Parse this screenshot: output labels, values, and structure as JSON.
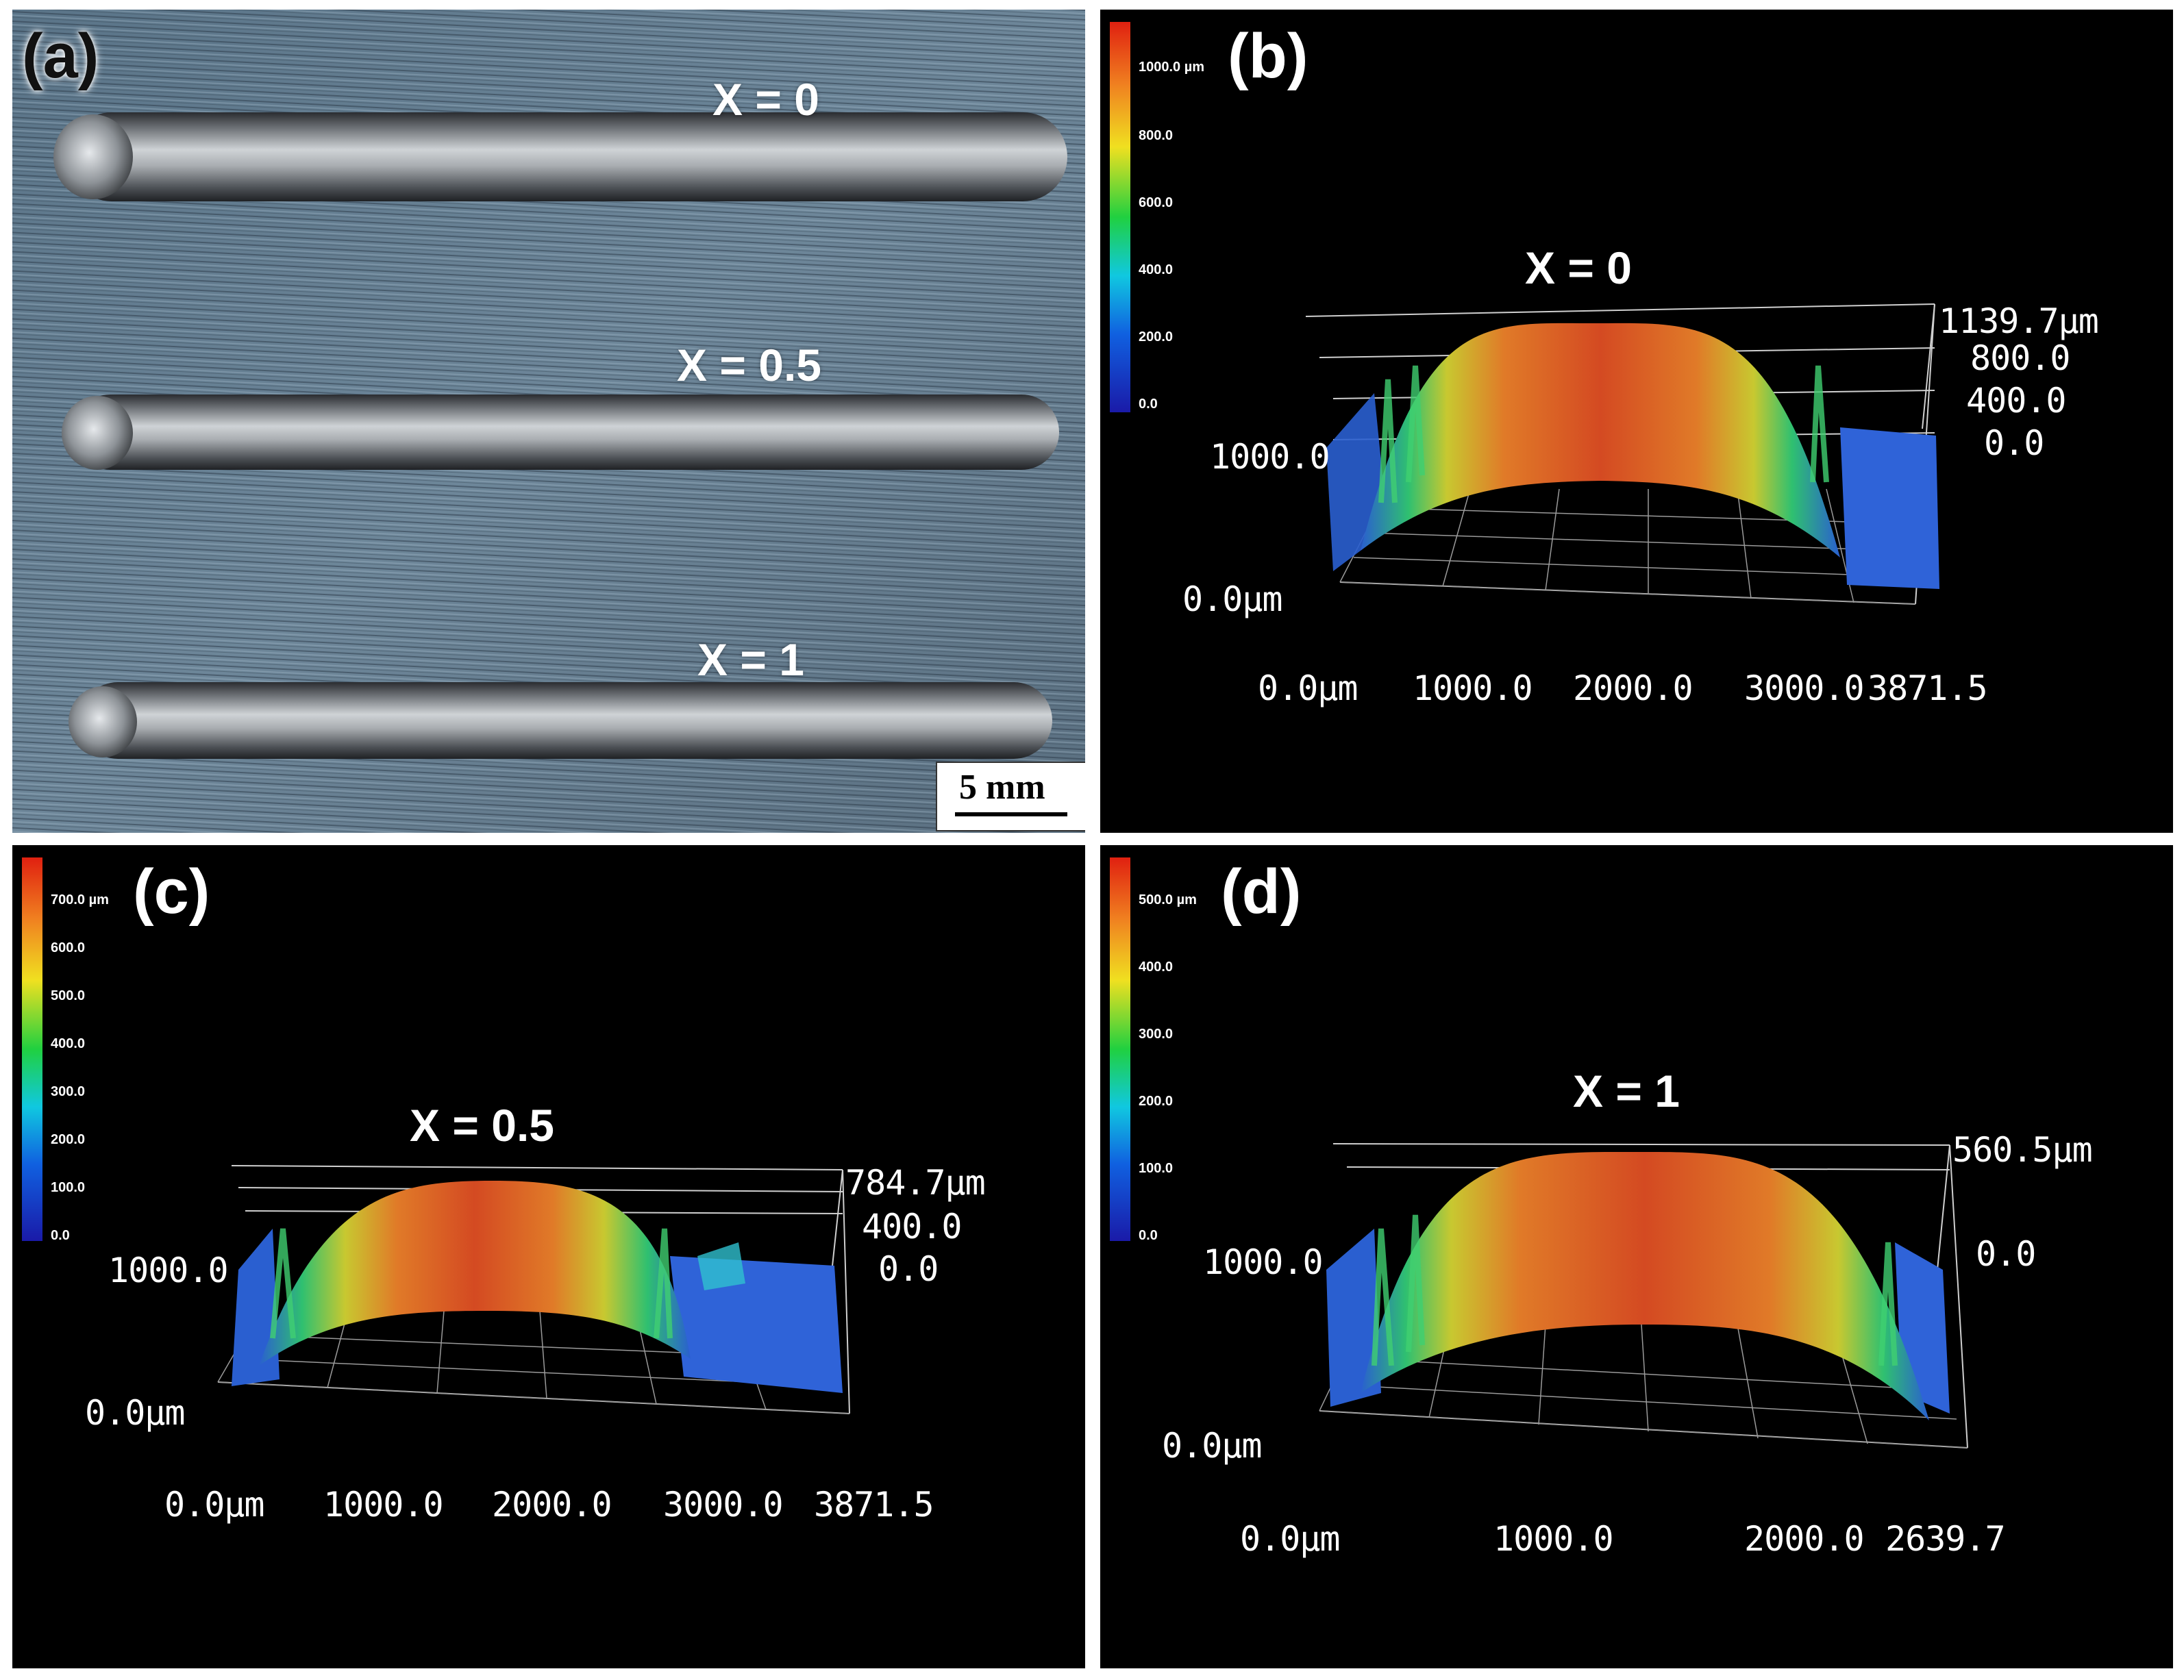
{
  "panels": {
    "a": {
      "label": "(a)",
      "tracks": [
        "X = 0",
        "X = 0.5",
        "X = 1"
      ],
      "scale_bar": "5 mm"
    },
    "b": {
      "label": "(b)",
      "title": "X = 0",
      "colorbar": [
        "1000.0 µm",
        "800.0",
        "600.0",
        "400.0",
        "200.0",
        "0.0"
      ],
      "z_ticks": [
        "1139.7µm",
        "800.0",
        "400.0",
        "0.0"
      ],
      "y_ticks": [
        "1000.0",
        "0.0µm"
      ],
      "x_ticks": [
        "0.0µm",
        "1000.0",
        "2000.0",
        "3000.0",
        "3871.5"
      ]
    },
    "c": {
      "label": "(c)",
      "title": "X = 0.5",
      "colorbar": [
        "700.0 µm",
        "600.0",
        "500.0",
        "400.0",
        "300.0",
        "200.0",
        "100.0",
        "0.0"
      ],
      "z_ticks": [
        "784.7µm",
        "400.0",
        "0.0"
      ],
      "y_ticks": [
        "1000.0",
        "0.0µm"
      ],
      "x_ticks": [
        "0.0µm",
        "1000.0",
        "2000.0",
        "3000.0",
        "3871.5"
      ]
    },
    "d": {
      "label": "(d)",
      "title": "X = 1",
      "colorbar": [
        "500.0 µm",
        "400.0",
        "300.0",
        "200.0",
        "100.0",
        "0.0"
      ],
      "z_ticks": [
        "560.5µm",
        "0.0"
      ],
      "y_ticks": [
        "1000.0",
        "0.0µm"
      ],
      "x_ticks": [
        "0.0µm",
        "1000.0",
        "2000.0",
        "2639.7"
      ]
    }
  }
}
